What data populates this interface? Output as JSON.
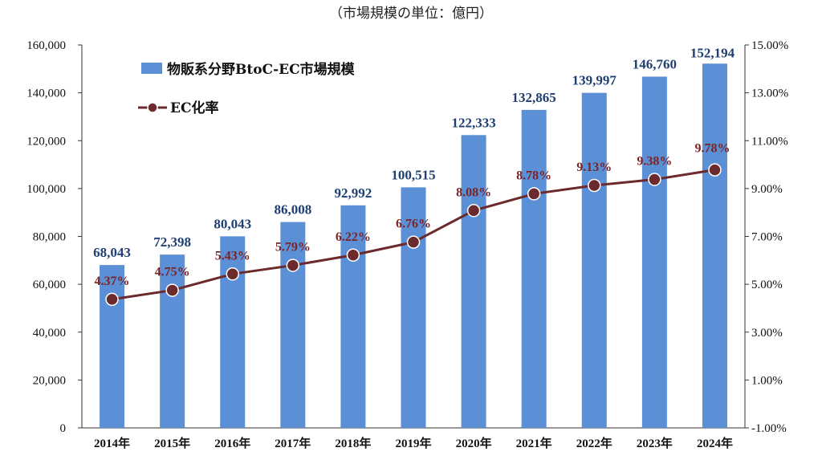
{
  "chart_data": {
    "type": "bar+line",
    "title": "（市場規模の単位：億円）",
    "categories": [
      "2014年",
      "2015年",
      "2016年",
      "2017年",
      "2018年",
      "2019年",
      "2020年",
      "2021年",
      "2022年",
      "2023年",
      "2024年"
    ],
    "series": [
      {
        "name": "物販系分野BtoC-EC市場規模",
        "type": "bar",
        "axis": "left",
        "color": "#5b8fd6",
        "values": [
          68043,
          72398,
          80043,
          86008,
          92992,
          100515,
          122333,
          132865,
          139997,
          146760,
          152194
        ],
        "labels": [
          "68,043",
          "72,398",
          "80,043",
          "86,008",
          "92,992",
          "100,515",
          "122,333",
          "132,865",
          "139,997",
          "146,760",
          "152,194"
        ]
      },
      {
        "name": "EC化率",
        "type": "line",
        "axis": "right",
        "color": "#6b2a2c",
        "values": [
          4.37,
          4.75,
          5.43,
          5.79,
          6.22,
          6.76,
          8.08,
          8.78,
          9.13,
          9.38,
          9.78
        ],
        "labels": [
          "4.37%",
          "4.75%",
          "5.43%",
          "5.79%",
          "6.22%",
          "6.76%",
          "8.08%",
          "8.78%",
          "9.13%",
          "9.38%",
          "9.78%"
        ]
      }
    ],
    "y_left": {
      "min": 0,
      "max": 160000,
      "ticks": [
        "0",
        "20,000",
        "40,000",
        "60,000",
        "80,000",
        "100,000",
        "120,000",
        "140,000",
        "160,000"
      ]
    },
    "y_right": {
      "min": -1,
      "max": 15,
      "ticks": [
        "-1.00%",
        "1.00%",
        "3.00%",
        "5.00%",
        "7.00%",
        "9.00%",
        "11.00%",
        "13.00%",
        "15.00%"
      ]
    },
    "legend_position": "top-left",
    "grid": false
  }
}
